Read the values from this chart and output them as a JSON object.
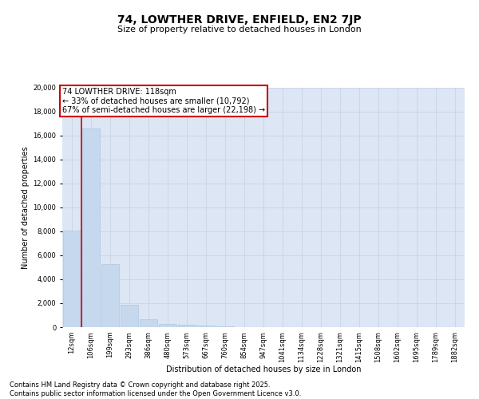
{
  "title": "74, LOWTHER DRIVE, ENFIELD, EN2 7JP",
  "subtitle": "Size of property relative to detached houses in London",
  "xlabel": "Distribution of detached houses by size in London",
  "ylabel": "Number of detached properties",
  "categories": [
    "12sqm",
    "106sqm",
    "199sqm",
    "293sqm",
    "386sqm",
    "480sqm",
    "573sqm",
    "667sqm",
    "760sqm",
    "854sqm",
    "947sqm",
    "1041sqm",
    "1134sqm",
    "1228sqm",
    "1321sqm",
    "1415sqm",
    "1508sqm",
    "1602sqm",
    "1695sqm",
    "1789sqm",
    "1882sqm"
  ],
  "values": [
    8100,
    16600,
    5300,
    1850,
    700,
    300,
    175,
    150,
    100,
    0,
    0,
    0,
    0,
    0,
    0,
    0,
    0,
    0,
    0,
    0,
    0
  ],
  "bar_color": "#c5d8ee",
  "bar_edgecolor": "#a8c0dc",
  "vline_color": "#cc0000",
  "annotation_box_text": "74 LOWTHER DRIVE: 118sqm\n← 33% of detached houses are smaller (10,792)\n67% of semi-detached houses are larger (22,198) →",
  "ylim": [
    0,
    20000
  ],
  "yticks": [
    0,
    2000,
    4000,
    6000,
    8000,
    10000,
    12000,
    14000,
    16000,
    18000,
    20000
  ],
  "grid_color": "#c8d4e4",
  "bg_color": "#dce6f4",
  "footer_text": "Contains HM Land Registry data © Crown copyright and database right 2025.\nContains public sector information licensed under the Open Government Licence v3.0.",
  "title_fontsize": 10,
  "subtitle_fontsize": 8,
  "axis_label_fontsize": 7,
  "tick_fontsize": 6,
  "annotation_fontsize": 7,
  "footer_fontsize": 6
}
